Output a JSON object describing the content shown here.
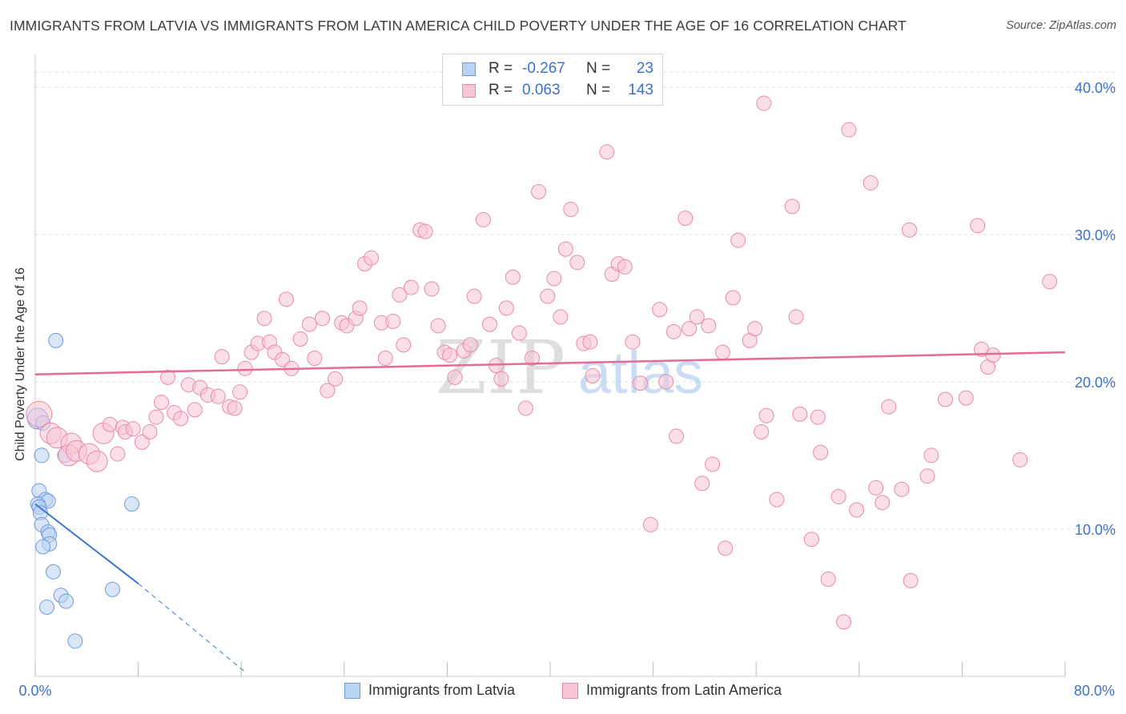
{
  "title": "IMMIGRANTS FROM LATVIA VS IMMIGRANTS FROM LATIN AMERICA CHILD POVERTY UNDER THE AGE OF 16 CORRELATION CHART",
  "source": "Source: ZipAtlas.com",
  "watermark": {
    "zip": "ZIP",
    "atlas": "atlas"
  },
  "legend": {
    "latvia": {
      "r_label": "R =",
      "r_value": "-0.267",
      "n_label": "N =",
      "n_value": "23"
    },
    "latam": {
      "r_label": "R =",
      "r_value": "0.063",
      "n_label": "N =",
      "n_value": "143"
    }
  },
  "bottom_legend": {
    "latvia": "Immigrants from Latvia",
    "latam": "Immigrants from Latin America"
  },
  "colors": {
    "latvia_fill": "#b9d1f2",
    "latvia_stroke": "#6e9be0",
    "latvia_line": "#3a78d4",
    "latam_fill": "#f7c5d4",
    "latam_stroke": "#e98aa8",
    "latam_line": "#e56c95",
    "tick_text": "#3b73c8",
    "grid": "#dcdcdc"
  },
  "chart_data": {
    "type": "scatter",
    "title": "IMMIGRANTS FROM LATVIA VS IMMIGRANTS FROM LATIN AMERICA CHILD POVERTY UNDER THE AGE OF 16 CORRELATION CHART",
    "xlabel": "",
    "ylabel": "Child Poverty Under the Age of 16",
    "xlim": [
      0,
      80
    ],
    "ylim": [
      0,
      42
    ],
    "x_tick_labels": [
      "0.0%",
      "80.0%"
    ],
    "y_ticks": [
      10,
      20,
      30,
      40
    ],
    "y_tick_labels": [
      "10.0%",
      "20.0%",
      "30.0%",
      "40.0%"
    ],
    "grid": true,
    "legend_position": "top-center",
    "series": [
      {
        "name": "Immigrants from Latvia",
        "color": "#6e9be0",
        "points": [
          [
            0.2,
            17.5,
            1
          ],
          [
            1.6,
            22.8,
            0
          ],
          [
            0.6,
            17.2,
            0
          ],
          [
            0.5,
            15.0,
            0
          ],
          [
            2.3,
            15.0,
            0
          ],
          [
            0.3,
            12.6,
            0
          ],
          [
            0.8,
            12.0,
            0
          ],
          [
            1.0,
            11.9,
            0
          ],
          [
            0.2,
            11.7,
            0
          ],
          [
            0.3,
            11.5,
            0
          ],
          [
            0.4,
            11.1,
            0
          ],
          [
            7.5,
            11.7,
            0
          ],
          [
            0.5,
            10.3,
            0
          ],
          [
            1.0,
            9.8,
            0
          ],
          [
            1.1,
            9.6,
            0
          ],
          [
            1.1,
            9.0,
            0
          ],
          [
            0.6,
            8.8,
            0
          ],
          [
            1.4,
            7.1,
            0
          ],
          [
            6.0,
            5.9,
            0
          ],
          [
            2.0,
            5.5,
            0
          ],
          [
            2.4,
            5.1,
            0
          ],
          [
            0.9,
            4.7,
            0
          ],
          [
            3.1,
            2.4,
            0
          ]
        ],
        "trend": {
          "x": [
            0,
            8
          ],
          "y": [
            11.7,
            6.3
          ],
          "dashed_to": [
            16.3,
            0.3
          ]
        }
      },
      {
        "name": "Immigrants from Latin America",
        "color": "#e98aa8",
        "points": [
          [
            0.3,
            17.8,
            2
          ],
          [
            1.2,
            16.5,
            1
          ],
          [
            1.7,
            16.2,
            1
          ],
          [
            2.8,
            15.8,
            1
          ],
          [
            2.6,
            15.0,
            1
          ],
          [
            3.2,
            15.3,
            1
          ],
          [
            4.2,
            15.1,
            1
          ],
          [
            4.8,
            14.6,
            1
          ],
          [
            5.3,
            16.5,
            1
          ],
          [
            5.8,
            17.1,
            0
          ],
          [
            6.4,
            15.1,
            0
          ],
          [
            6.8,
            16.9,
            0
          ],
          [
            7.0,
            16.6,
            0
          ],
          [
            7.6,
            16.8,
            0
          ],
          [
            8.3,
            15.9,
            0
          ],
          [
            8.9,
            16.6,
            0
          ],
          [
            9.4,
            17.6,
            0
          ],
          [
            9.8,
            18.6,
            0
          ],
          [
            10.3,
            20.3,
            0
          ],
          [
            10.8,
            17.9,
            0
          ],
          [
            11.3,
            17.5,
            0
          ],
          [
            11.9,
            19.8,
            0
          ],
          [
            12.4,
            18.1,
            0
          ],
          [
            12.8,
            19.6,
            0
          ],
          [
            13.4,
            19.1,
            0
          ],
          [
            14.2,
            19.0,
            0
          ],
          [
            14.5,
            21.7,
            0
          ],
          [
            15.1,
            18.3,
            0
          ],
          [
            15.5,
            18.2,
            0
          ],
          [
            15.9,
            19.3,
            0
          ],
          [
            16.3,
            20.9,
            0
          ],
          [
            16.8,
            22.0,
            0
          ],
          [
            17.3,
            22.6,
            0
          ],
          [
            17.8,
            24.3,
            0
          ],
          [
            18.2,
            22.7,
            0
          ],
          [
            18.6,
            22.0,
            0
          ],
          [
            19.2,
            21.5,
            0
          ],
          [
            19.5,
            25.6,
            0
          ],
          [
            19.9,
            20.9,
            0
          ],
          [
            20.6,
            22.9,
            0
          ],
          [
            21.3,
            23.9,
            0
          ],
          [
            21.7,
            21.6,
            0
          ],
          [
            22.3,
            24.3,
            0
          ],
          [
            22.7,
            19.4,
            0
          ],
          [
            23.3,
            20.2,
            0
          ],
          [
            23.8,
            24.0,
            0
          ],
          [
            24.2,
            23.8,
            0
          ],
          [
            24.9,
            24.3,
            0
          ],
          [
            25.2,
            25.0,
            0
          ],
          [
            25.6,
            28.0,
            0
          ],
          [
            26.1,
            28.4,
            0
          ],
          [
            26.9,
            24.0,
            0
          ],
          [
            27.2,
            21.6,
            0
          ],
          [
            27.8,
            24.1,
            0
          ],
          [
            28.3,
            25.9,
            0
          ],
          [
            28.6,
            22.5,
            0
          ],
          [
            29.2,
            26.4,
            0
          ],
          [
            29.9,
            30.3,
            0
          ],
          [
            30.3,
            30.2,
            0
          ],
          [
            30.8,
            26.3,
            0
          ],
          [
            31.3,
            23.8,
            0
          ],
          [
            31.8,
            22.0,
            0
          ],
          [
            32.2,
            21.8,
            0
          ],
          [
            32.6,
            20.3,
            0
          ],
          [
            33.3,
            22.1,
            0
          ],
          [
            33.8,
            22.5,
            0
          ],
          [
            34.1,
            25.8,
            0
          ],
          [
            34.8,
            31.0,
            0
          ],
          [
            35.3,
            23.9,
            0
          ],
          [
            35.8,
            21.1,
            0
          ],
          [
            36.2,
            20.2,
            0
          ],
          [
            36.6,
            25.0,
            0
          ],
          [
            37.1,
            27.1,
            0
          ],
          [
            37.6,
            23.3,
            0
          ],
          [
            38.1,
            18.2,
            0
          ],
          [
            38.6,
            21.6,
            0
          ],
          [
            39.1,
            32.9,
            0
          ],
          [
            39.8,
            25.8,
            0
          ],
          [
            40.3,
            27.0,
            0
          ],
          [
            40.8,
            24.4,
            0
          ],
          [
            41.2,
            29.0,
            0
          ],
          [
            41.6,
            31.7,
            0
          ],
          [
            42.1,
            28.1,
            0
          ],
          [
            42.6,
            22.6,
            0
          ],
          [
            43.1,
            22.7,
            0
          ],
          [
            43.3,
            20.4,
            0
          ],
          [
            44.4,
            35.6,
            0
          ],
          [
            44.8,
            27.3,
            0
          ],
          [
            45.3,
            28.0,
            0
          ],
          [
            45.8,
            27.8,
            0
          ],
          [
            46.4,
            22.7,
            0
          ],
          [
            47.0,
            19.9,
            0
          ],
          [
            47.8,
            10.3,
            0
          ],
          [
            48.5,
            24.9,
            0
          ],
          [
            49.0,
            20.0,
            0
          ],
          [
            49.6,
            23.4,
            0
          ],
          [
            49.8,
            16.3,
            0
          ],
          [
            50.5,
            31.1,
            0
          ],
          [
            50.8,
            23.6,
            0
          ],
          [
            51.4,
            24.4,
            0
          ],
          [
            51.8,
            13.1,
            0
          ],
          [
            52.3,
            23.8,
            0
          ],
          [
            52.6,
            14.4,
            0
          ],
          [
            53.4,
            22.0,
            0
          ],
          [
            53.6,
            8.7,
            0
          ],
          [
            54.2,
            25.7,
            0
          ],
          [
            54.6,
            29.6,
            0
          ],
          [
            55.5,
            22.8,
            0
          ],
          [
            55.9,
            23.6,
            0
          ],
          [
            56.4,
            16.6,
            0
          ],
          [
            56.6,
            38.9,
            0
          ],
          [
            56.8,
            17.7,
            0
          ],
          [
            57.6,
            12.0,
            0
          ],
          [
            58.8,
            31.9,
            0
          ],
          [
            59.1,
            24.4,
            0
          ],
          [
            59.4,
            17.8,
            0
          ],
          [
            60.3,
            9.3,
            0
          ],
          [
            60.8,
            17.6,
            0
          ],
          [
            61.0,
            15.2,
            0
          ],
          [
            61.6,
            6.6,
            0
          ],
          [
            62.4,
            12.2,
            0
          ],
          [
            62.8,
            3.7,
            0
          ],
          [
            63.2,
            37.1,
            0
          ],
          [
            63.8,
            11.3,
            0
          ],
          [
            64.9,
            33.5,
            0
          ],
          [
            65.3,
            12.8,
            0
          ],
          [
            65.8,
            11.8,
            0
          ],
          [
            66.3,
            18.3,
            0
          ],
          [
            67.3,
            12.7,
            0
          ],
          [
            67.9,
            30.3,
            0
          ],
          [
            68.0,
            6.5,
            0
          ],
          [
            69.3,
            13.6,
            0
          ],
          [
            69.6,
            15.0,
            0
          ],
          [
            70.7,
            18.8,
            0
          ],
          [
            72.3,
            18.9,
            0
          ],
          [
            73.2,
            30.6,
            0
          ],
          [
            73.5,
            22.2,
            0
          ],
          [
            74.0,
            21.0,
            0
          ],
          [
            74.4,
            21.8,
            0
          ],
          [
            76.5,
            14.7,
            0
          ],
          [
            78.8,
            26.8,
            0
          ]
        ],
        "trend": {
          "x": [
            0,
            80
          ],
          "y": [
            20.5,
            22.0
          ]
        }
      }
    ]
  }
}
